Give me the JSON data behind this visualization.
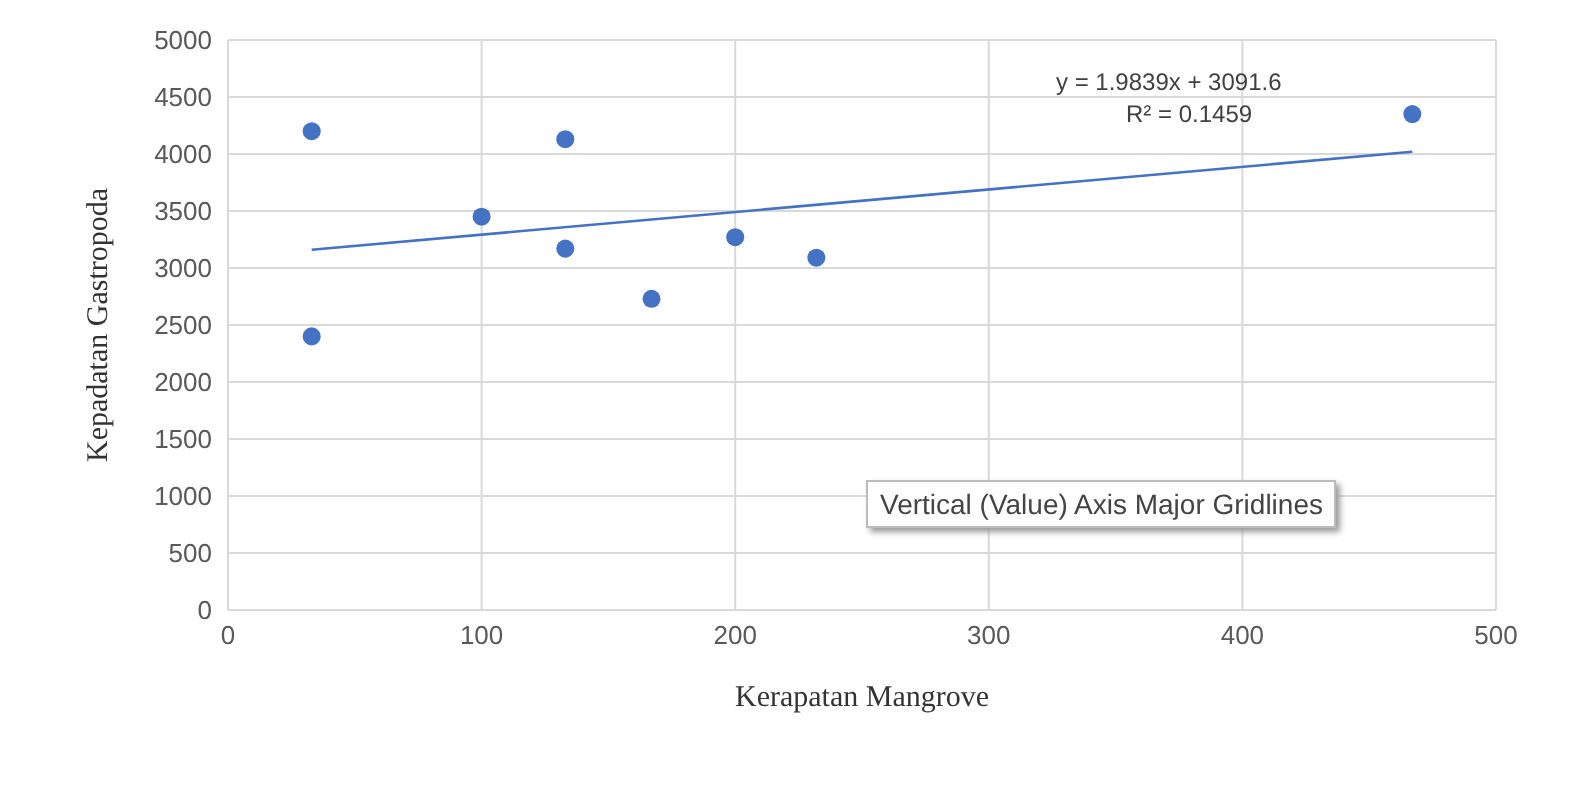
{
  "chart_data": {
    "type": "scatter",
    "xlabel": "Kerapatan Mangrove",
    "ylabel": "Kepadatan Gastropoda",
    "series": [
      {
        "color": "#4472c4",
        "marker": "circle",
        "x": [
          33,
          33,
          100,
          133,
          133,
          167,
          200,
          232,
          467
        ],
        "values": [
          4200,
          2400,
          3450,
          4130,
          3170,
          2730,
          3270,
          3090,
          4350
        ]
      },
      {
        "type": "line",
        "color": "#4472c4",
        "marker": "none",
        "x": [
          33,
          467
        ],
        "values": [
          3160,
          4020
        ]
      }
    ],
    "xlim": [
      0,
      500
    ],
    "xticks": [
      0,
      100,
      200,
      300,
      400,
      500
    ],
    "ylim": [
      0,
      5000
    ],
    "yticks": [
      0,
      500,
      1000,
      1500,
      2000,
      2500,
      3000,
      3500,
      4000,
      4500,
      5000
    ],
    "grid": true,
    "legend": false,
    "annotations": [
      "y = 1.9839x + 3091.6",
      "R² = 0.1459",
      "Vertical (Value) Axis Major Gridlines"
    ]
  }
}
